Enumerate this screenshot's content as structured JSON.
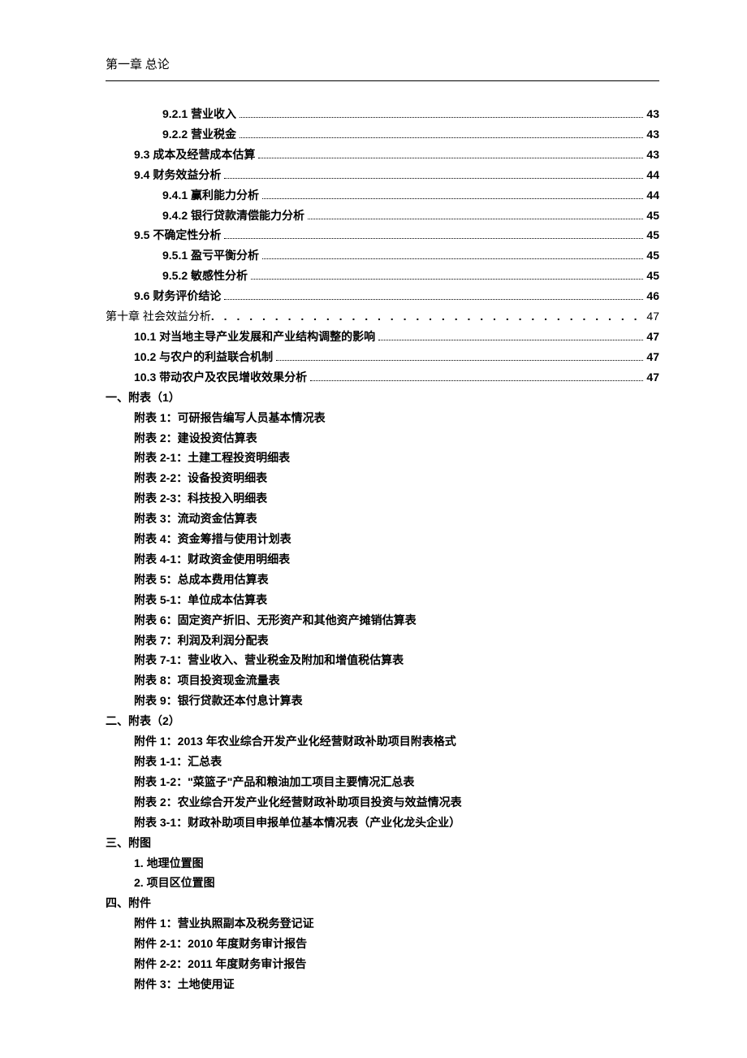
{
  "header": "第一章    总论",
  "toc": [
    {
      "label": "9.2.1  营业收入",
      "page": "43",
      "indent": 2,
      "bold": true,
      "dots": "fine"
    },
    {
      "label": "9.2.2  营业税金",
      "page": "43",
      "indent": 2,
      "bold": true,
      "dots": "fine"
    },
    {
      "label": "9.3  成本及经营成本估算",
      "page": "43",
      "indent": 1,
      "bold": true,
      "dots": "fine"
    },
    {
      "label": "9.4  财务效益分析",
      "page": "44",
      "indent": 1,
      "bold": true,
      "dots": "fine"
    },
    {
      "label": "9.4.1  赢利能力分析",
      "page": "44",
      "indent": 2,
      "bold": true,
      "dots": "fine"
    },
    {
      "label": "9.4.2  银行贷款清偿能力分析",
      "page": "45",
      "indent": 2,
      "bold": true,
      "dots": "fine"
    },
    {
      "label": "9.5  不确定性分析",
      "page": "45",
      "indent": 1,
      "bold": true,
      "dots": "fine"
    },
    {
      "label": "9.5.1  盈亏平衡分析",
      "page": "45",
      "indent": 2,
      "bold": true,
      "dots": "fine"
    },
    {
      "label": "9.5.2  敏感性分析",
      "page": "45",
      "indent": 2,
      "bold": true,
      "dots": "fine"
    },
    {
      "label": "9.6  财务评价结论",
      "page": "46",
      "indent": 1,
      "bold": true,
      "dots": "fine"
    },
    {
      "label": "第十章      社会效益分析",
      "page": "47",
      "indent": 0,
      "bold": false,
      "dots": "wide"
    },
    {
      "label": "10.1  对当地主导产业发展和产业结构调整的影响",
      "page": "47",
      "indent": 1,
      "bold": true,
      "dots": "fine"
    },
    {
      "label": "10.2  与农户的利益联合机制",
      "page": "47",
      "indent": 1,
      "bold": true,
      "dots": "fine"
    },
    {
      "label": "10.3  带动农户及农民增收效果分析",
      "page": "47",
      "indent": 1,
      "bold": true,
      "dots": "fine"
    }
  ],
  "sections": [
    {
      "title": "一、附表（1）",
      "items": [
        "附表 1：可研报告编写人员基本情况表",
        "附表 2：建设投资估算表",
        "附表 2-1：土建工程投资明细表",
        "附表 2-2：设备投资明细表",
        "附表 2-3：科技投入明细表",
        "附表 3：流动资金估算表",
        "附表 4：资金筹措与使用计划表",
        "附表 4-1：财政资金使用明细表",
        "附表 5：总成本费用估算表",
        "附表 5-1：单位成本估算表",
        "附表 6：固定资产折旧、无形资产和其他资产摊销估算表",
        "附表 7：利润及利润分配表",
        "附表 7-1：营业收入、营业税金及附加和增值税估算表",
        "附表 8：项目投资现金流量表",
        "附表 9：银行贷款还本付息计算表"
      ]
    },
    {
      "title": "二、附表（2）",
      "items": [
        "附件 1：2013 年农业综合开发产业化经营财政补助项目附表格式",
        "附表 1-1：汇总表",
        "附表 1-2：\"菜篮子\"产品和粮油加工项目主要情况汇总表",
        "附表 2：农业综合开发产业化经营财政补助项目投资与效益情况表",
        "附表 3-1：财政补助项目申报单位基本情况表（产业化龙头企业）"
      ]
    },
    {
      "title": "三、附图",
      "items": [
        "1. 地理位置图",
        "2. 项目区位置图"
      ]
    },
    {
      "title": "四、附件",
      "items": [
        "附件 1：营业执照副本及税务登记证",
        "附件 2-1：2010 年度财务审计报告",
        "附件 2-2：2011 年度财务审计报告",
        "附件 3：土地使用证"
      ]
    }
  ]
}
